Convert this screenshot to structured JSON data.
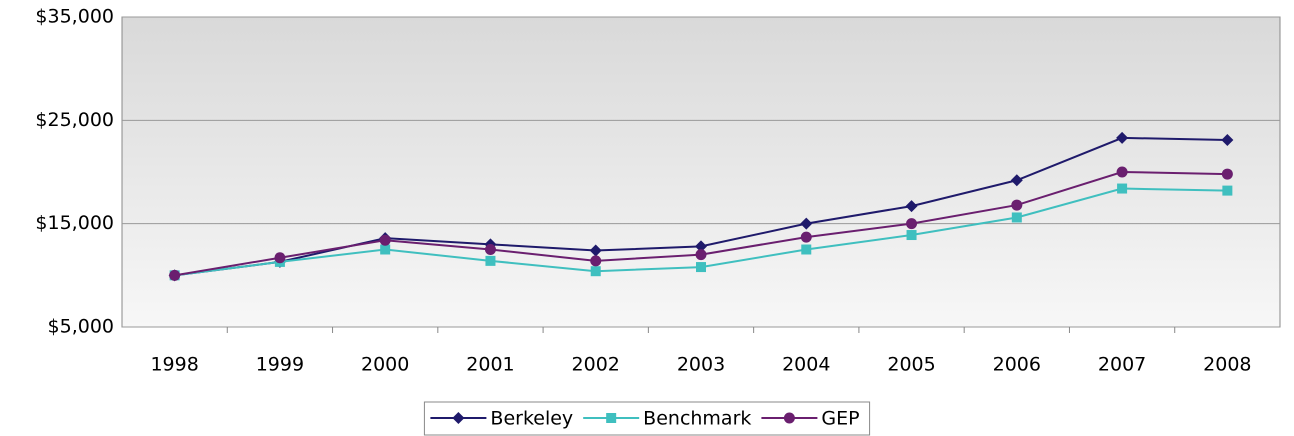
{
  "chart_data": {
    "type": "line",
    "categories": [
      "1998",
      "1999",
      "2000",
      "2001",
      "2002",
      "2003",
      "2004",
      "2005",
      "2006",
      "2007",
      "2008"
    ],
    "series": [
      {
        "name": "Berkeley",
        "color": "#1f1a6b",
        "marker": "diamond",
        "values": [
          10000,
          11300,
          13600,
          13000,
          12400,
          12800,
          15000,
          16700,
          19200,
          23300,
          23100
        ]
      },
      {
        "name": "Benchmark",
        "color": "#3fbfbf",
        "marker": "square",
        "values": [
          10000,
          11300,
          12500,
          11400,
          10400,
          10800,
          12500,
          13900,
          15600,
          18400,
          18200
        ]
      },
      {
        "name": "GEP",
        "color": "#6a1f6f",
        "marker": "circle",
        "values": [
          10000,
          11700,
          13400,
          12500,
          11400,
          12000,
          13700,
          15000,
          16800,
          20000,
          19800
        ]
      }
    ],
    "ylim": [
      5000,
      35000
    ],
    "yticks": [
      {
        "value": 5000,
        "label": "$5,000"
      },
      {
        "value": 15000,
        "label": "$15,000"
      },
      {
        "value": 25000,
        "label": "$25,000"
      },
      {
        "value": 35000,
        "label": "$35,000"
      }
    ],
    "grid": true,
    "legend": "bottom"
  }
}
